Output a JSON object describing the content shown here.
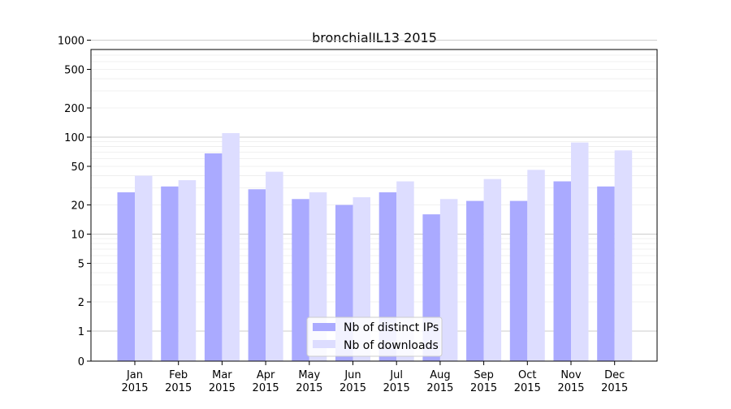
{
  "chart_data": {
    "type": "bar",
    "title": "bronchialIL13 2015",
    "xlabel": "",
    "ylabel": "",
    "yscale": "symlog",
    "ylim": [
      0,
      1300
    ],
    "yticks": [
      0,
      1,
      2,
      5,
      10,
      20,
      50,
      100,
      200,
      500,
      1000
    ],
    "grid": true,
    "legend_position": "lower center",
    "categories": [
      "Jan\n2015",
      "Feb\n2015",
      "Mar\n2015",
      "Apr\n2015",
      "May\n2015",
      "Jun\n2015",
      "Jul\n2015",
      "Aug\n2015",
      "Sep\n2015",
      "Oct\n2015",
      "Nov\n2015",
      "Dec\n2015"
    ],
    "series": [
      {
        "name": "Nb of distinct IPs",
        "color": "#aaaaff",
        "values": [
          27,
          31,
          68,
          29,
          23,
          20,
          27,
          16,
          22,
          22,
          35,
          31
        ]
      },
      {
        "name": "Nb of downloads",
        "color": "#ddddff",
        "values": [
          40,
          36,
          110,
          44,
          27,
          24,
          35,
          23,
          37,
          46,
          88,
          73
        ]
      }
    ]
  }
}
